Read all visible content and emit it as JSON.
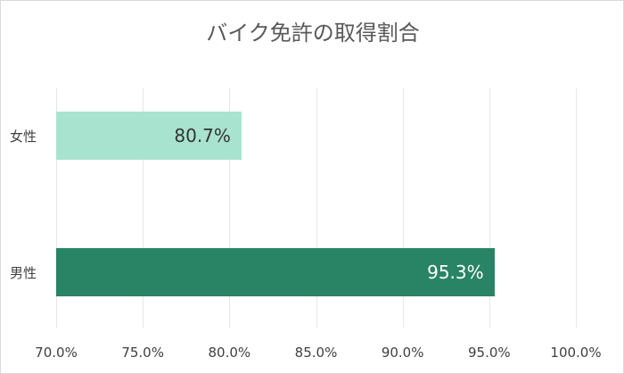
{
  "chart_data": {
    "type": "bar",
    "orientation": "horizontal",
    "title": "バイク免許の取得割合",
    "categories": [
      "女性",
      "男性"
    ],
    "values": [
      80.7,
      95.3
    ],
    "value_labels": [
      "80.7%",
      "95.3%"
    ],
    "colors": [
      "#a8e3d0",
      "#288465"
    ],
    "label_colors": [
      "#333333",
      "#ffffff"
    ],
    "xlabel": "",
    "ylabel": "",
    "xlim": [
      70,
      100
    ],
    "x_ticks": [
      "70.0%",
      "75.0%",
      "80.0%",
      "85.0%",
      "90.0%",
      "95.0%",
      "100.0%"
    ],
    "grid": true,
    "legend": null
  }
}
